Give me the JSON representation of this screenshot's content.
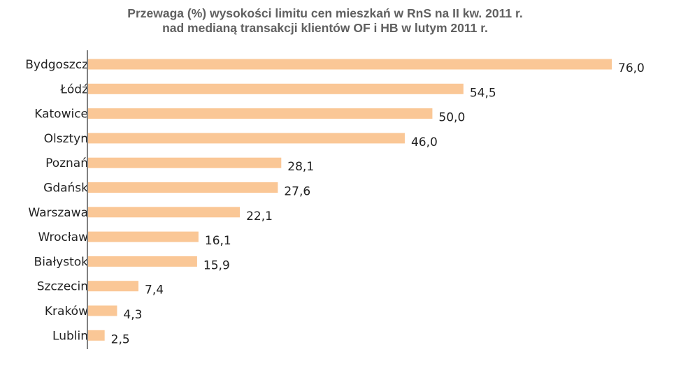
{
  "colors": {
    "bar": "#FAC796",
    "axis": "#808080",
    "title": "#606060",
    "text": "#222222"
  },
  "chart_data": {
    "type": "bar",
    "orientation": "horizontal",
    "title": "Przewaga (%) wysokości limitu cen mieszkań w RnS na II kw. 2011 r.",
    "subtitle": "nad medianą transakcji klientów OF i HB w lutym 2011 r.",
    "xlabel": "",
    "ylabel": "",
    "grid": false,
    "xlim": [
      0,
      76.0
    ],
    "categories": [
      "Bydgoszcz",
      "Łódź",
      "Katowice",
      "Olsztyn",
      "Poznań",
      "Gdańsk",
      "Warszawa",
      "Wrocław",
      "Białystok",
      "Szczecin",
      "Kraków",
      "Lublin"
    ],
    "values": [
      76.0,
      54.5,
      50.0,
      46.0,
      28.1,
      27.6,
      22.1,
      16.1,
      15.9,
      7.4,
      4.3,
      2.5
    ],
    "labels": [
      "76,0",
      "54,5",
      "50,0",
      "46,0",
      "28,1",
      "27,6",
      "22,1",
      "16,1",
      "15,9",
      "7,4",
      "4,3",
      "2,5"
    ]
  }
}
